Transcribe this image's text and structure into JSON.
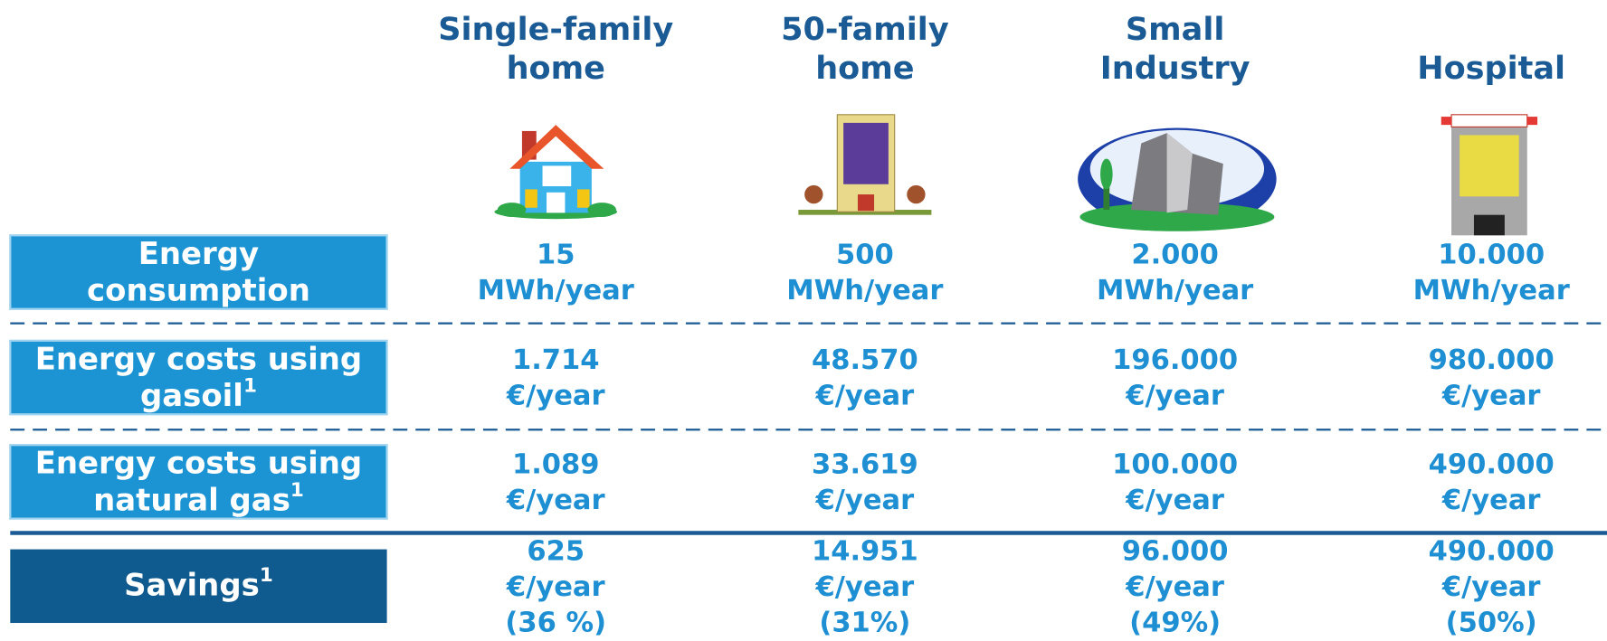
{
  "columns": [
    {
      "title": [
        "Single-family",
        "home"
      ]
    },
    {
      "title": [
        "50-family",
        "home"
      ]
    },
    {
      "title": [
        "Small",
        "Industry"
      ]
    },
    {
      "title": [
        "Hospital"
      ]
    }
  ],
  "rows": [
    {
      "label": [
        "Energy",
        "consumption"
      ],
      "cells": [
        [
          "15",
          "MWh/year"
        ],
        [
          "500",
          "MWh/year"
        ],
        [
          "2.000",
          "MWh/year"
        ],
        [
          "10.000",
          "MWh/year"
        ]
      ]
    },
    {
      "label": [
        "Energy costs using",
        "gasoil"
      ],
      "note": "1",
      "cells": [
        [
          "1.714",
          "€/year"
        ],
        [
          "48.570",
          "€/year"
        ],
        [
          "196.000",
          "€/year"
        ],
        [
          "980.000",
          "€/year"
        ]
      ]
    },
    {
      "label": [
        "Energy costs using",
        "natural gas"
      ],
      "note": "1",
      "cells": [
        [
          "1.089",
          "€/year"
        ],
        [
          "33.619",
          "€/year"
        ],
        [
          "100.000",
          "€/year"
        ],
        [
          "490.000",
          "€/year"
        ]
      ]
    },
    {
      "label": [
        "Savings"
      ],
      "note": "1",
      "cells": [
        [
          "625",
          "€/year",
          "(36 %)"
        ],
        [
          "14.951",
          "€/year",
          "(31%)"
        ],
        [
          "96.000",
          "€/year",
          "(49%)"
        ],
        [
          "490.000",
          "€/year",
          "(50%)"
        ]
      ]
    }
  ]
}
